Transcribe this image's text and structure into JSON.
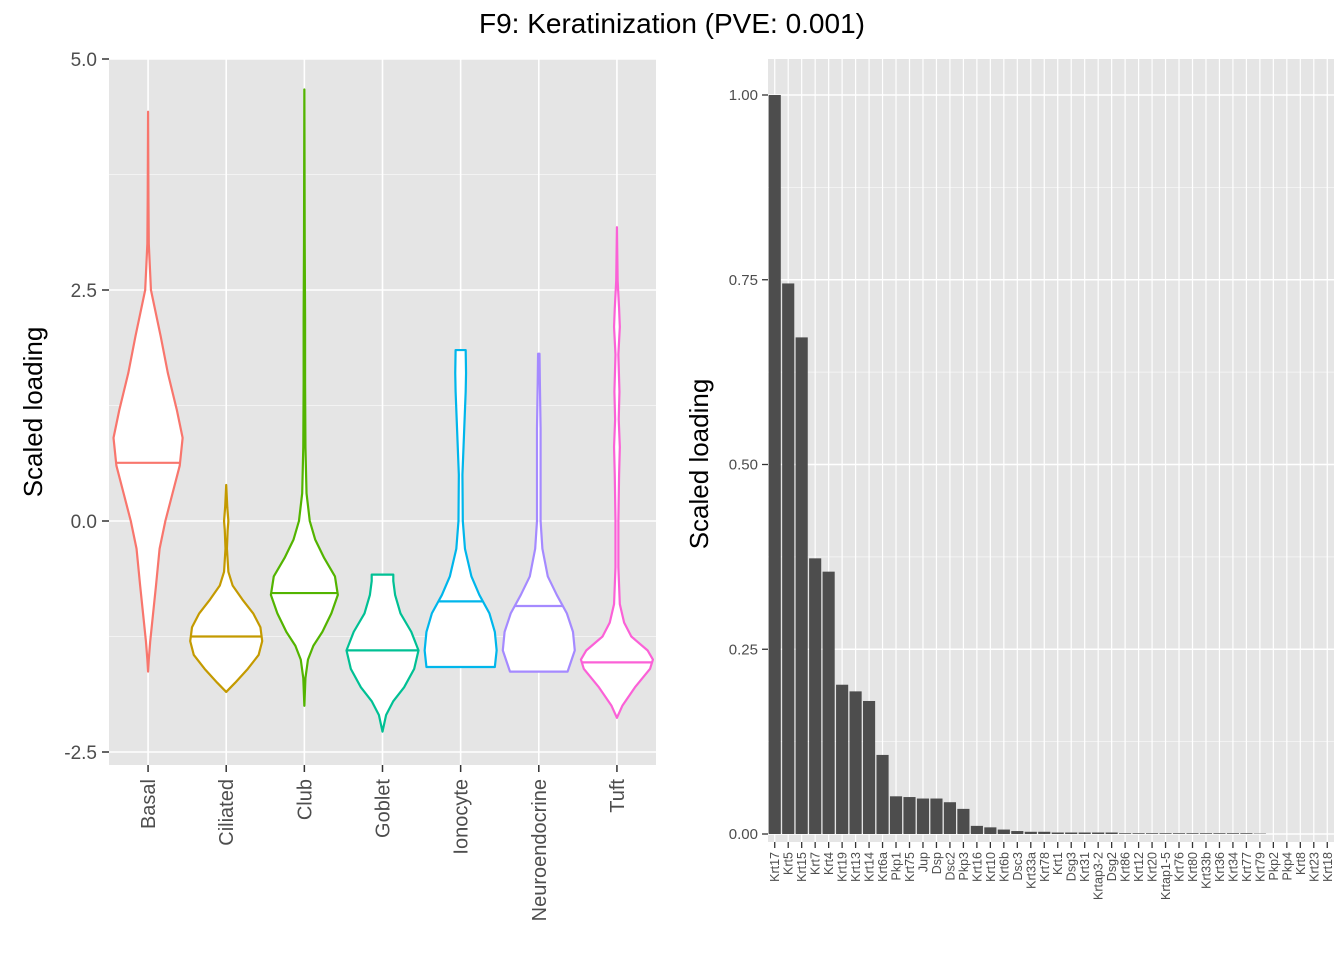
{
  "figure": {
    "title": "F9: Keratinization (PVE: 0.001)",
    "panel_background": "#e5e5e5",
    "grid_color": "#ffffff",
    "tick_text_color": "#4d4d4d"
  },
  "chart_data": [
    {
      "type": "violin",
      "title": "",
      "xlabel": "",
      "ylabel": "Scaled loading",
      "ylim": [
        -2.7,
        5.0
      ],
      "yticks": [
        -2.5,
        0.0,
        2.5,
        5.0
      ],
      "ytick_labels": [
        "-2.5",
        "0.0",
        "2.5",
        "5.0"
      ],
      "grid": true,
      "legend": "none",
      "categories": [
        "Basal",
        "Ciliated",
        "Club",
        "Goblet",
        "Ionocyte",
        "Neuroendocrine",
        "Tuft"
      ],
      "series": [
        {
          "category": "Basal",
          "color": "#F8766D",
          "median": 0.63,
          "min": -1.63,
          "max": 4.43,
          "profile": [
            [
              -1.63,
              0.0
            ],
            [
              -1.5,
              0.02
            ],
            [
              -1.3,
              0.06
            ],
            [
              -1.0,
              0.14
            ],
            [
              -0.7,
              0.22
            ],
            [
              -0.3,
              0.32
            ],
            [
              0.0,
              0.48
            ],
            [
              0.3,
              0.68
            ],
            [
              0.6,
              0.88
            ],
            [
              0.9,
              0.96
            ],
            [
              1.2,
              0.8
            ],
            [
              1.6,
              0.55
            ],
            [
              2.0,
              0.35
            ],
            [
              2.5,
              0.08
            ],
            [
              3.0,
              0.02
            ],
            [
              3.5,
              0.01
            ],
            [
              4.43,
              0.0
            ]
          ]
        },
        {
          "category": "Ciliated",
          "color": "#C49A00",
          "median": -1.25,
          "min": -1.85,
          "max": 0.39,
          "profile": [
            [
              -1.85,
              0.0
            ],
            [
              -1.75,
              0.25
            ],
            [
              -1.6,
              0.6
            ],
            [
              -1.45,
              0.9
            ],
            [
              -1.3,
              1.0
            ],
            [
              -1.15,
              0.95
            ],
            [
              -1.0,
              0.75
            ],
            [
              -0.85,
              0.45
            ],
            [
              -0.7,
              0.18
            ],
            [
              -0.55,
              0.06
            ],
            [
              -0.3,
              0.02
            ],
            [
              -0.1,
              0.04
            ],
            [
              0.0,
              0.06
            ],
            [
              0.15,
              0.03
            ],
            [
              0.39,
              0.0
            ]
          ]
        },
        {
          "category": "Club",
          "color": "#53B400",
          "median": -0.78,
          "min": -2.0,
          "max": 4.67,
          "profile": [
            [
              -2.0,
              0.0
            ],
            [
              -1.7,
              0.03
            ],
            [
              -1.5,
              0.1
            ],
            [
              -1.35,
              0.25
            ],
            [
              -1.2,
              0.5
            ],
            [
              -1.0,
              0.75
            ],
            [
              -0.8,
              0.93
            ],
            [
              -0.6,
              0.85
            ],
            [
              -0.4,
              0.55
            ],
            [
              -0.2,
              0.3
            ],
            [
              0.0,
              0.15
            ],
            [
              0.3,
              0.06
            ],
            [
              0.8,
              0.03
            ],
            [
              1.5,
              0.02
            ],
            [
              2.2,
              0.02
            ],
            [
              3.0,
              0.01
            ],
            [
              4.67,
              0.0
            ]
          ]
        },
        {
          "category": "Goblet",
          "color": "#00C094",
          "median": -1.4,
          "min": -2.28,
          "max": -0.58,
          "profile": [
            [
              -2.28,
              0.0
            ],
            [
              -2.1,
              0.1
            ],
            [
              -1.95,
              0.3
            ],
            [
              -1.8,
              0.6
            ],
            [
              -1.6,
              0.88
            ],
            [
              -1.4,
              1.0
            ],
            [
              -1.2,
              0.8
            ],
            [
              -1.0,
              0.5
            ],
            [
              -0.8,
              0.35
            ],
            [
              -0.65,
              0.3
            ],
            [
              -0.58,
              0.3
            ]
          ]
        },
        {
          "category": "Ionocyte",
          "color": "#00B6EB",
          "median": -0.87,
          "min": -1.58,
          "max": 1.85,
          "profile": [
            [
              -1.58,
              0.95
            ],
            [
              -1.4,
              1.0
            ],
            [
              -1.2,
              0.95
            ],
            [
              -1.0,
              0.8
            ],
            [
              -0.8,
              0.52
            ],
            [
              -0.6,
              0.3
            ],
            [
              -0.3,
              0.12
            ],
            [
              0.0,
              0.06
            ],
            [
              0.5,
              0.05
            ],
            [
              1.0,
              0.1
            ],
            [
              1.4,
              0.14
            ],
            [
              1.6,
              0.15
            ],
            [
              1.85,
              0.14
            ]
          ]
        },
        {
          "category": "Neuroendocrine",
          "color": "#A58AFF",
          "median": -0.92,
          "min": -1.63,
          "max": 1.81,
          "profile": [
            [
              -1.63,
              0.8
            ],
            [
              -1.4,
              1.0
            ],
            [
              -1.2,
              0.95
            ],
            [
              -1.0,
              0.78
            ],
            [
              -0.8,
              0.5
            ],
            [
              -0.6,
              0.25
            ],
            [
              -0.3,
              0.1
            ],
            [
              0.0,
              0.05
            ],
            [
              0.5,
              0.05
            ],
            [
              1.0,
              0.05
            ],
            [
              1.5,
              0.03
            ],
            [
              1.81,
              0.02
            ]
          ]
        },
        {
          "category": "Tuft",
          "color": "#FB61D7",
          "median": -1.53,
          "min": -2.13,
          "max": 3.18,
          "profile": [
            [
              -2.13,
              0.0
            ],
            [
              -2.0,
              0.15
            ],
            [
              -1.8,
              0.5
            ],
            [
              -1.6,
              0.92
            ],
            [
              -1.5,
              1.0
            ],
            [
              -1.4,
              0.85
            ],
            [
              -1.25,
              0.4
            ],
            [
              -1.1,
              0.2
            ],
            [
              -0.9,
              0.08
            ],
            [
              -0.5,
              0.04
            ],
            [
              0.0,
              0.04
            ],
            [
              0.5,
              0.06
            ],
            [
              0.8,
              0.08
            ],
            [
              1.1,
              0.05
            ],
            [
              1.4,
              0.07
            ],
            [
              1.8,
              0.04
            ],
            [
              2.1,
              0.08
            ],
            [
              2.3,
              0.06
            ],
            [
              2.6,
              0.02
            ],
            [
              3.18,
              0.0
            ]
          ]
        }
      ]
    },
    {
      "type": "bar",
      "title": "",
      "xlabel": "",
      "ylabel": "Scaled loading",
      "ylim": [
        0.0,
        1.0
      ],
      "yticks": [
        0.0,
        0.25,
        0.5,
        0.75,
        1.0
      ],
      "ytick_labels": [
        "0.00",
        "0.25",
        "0.50",
        "0.75",
        "1.00"
      ],
      "grid": true,
      "legend": "none",
      "bar_color": "#4d4d4d",
      "categories": [
        "Krt17",
        "Krt5",
        "Krt15",
        "Krt7",
        "Krt4",
        "Krt19",
        "Krt13",
        "Krt14",
        "Krt6a",
        "Pkp1",
        "Krt75",
        "Jup",
        "Dsp",
        "Dsc2",
        "Pkp3",
        "Krt16",
        "Krt10",
        "Krt6b",
        "Dsc3",
        "Krt33a",
        "Krt78",
        "Krt1",
        "Dsg3",
        "Krt31",
        "Krtap3-2",
        "Dsg2",
        "Krt86",
        "Krt12",
        "Krt20",
        "Krtap1-5",
        "Krt76",
        "Krt80",
        "Krt33b",
        "Krt36",
        "Krt34",
        "Krt77",
        "Krt79",
        "Pkp2",
        "Pkp4",
        "Krt8",
        "Krt23",
        "Krt18"
      ],
      "values": [
        1.0,
        0.745,
        0.672,
        0.373,
        0.355,
        0.202,
        0.193,
        0.18,
        0.107,
        0.051,
        0.05,
        0.048,
        0.048,
        0.043,
        0.034,
        0.011,
        0.009,
        0.006,
        0.004,
        0.003,
        0.003,
        0.002,
        0.002,
        0.002,
        0.002,
        0.002,
        0.001,
        0.001,
        0.001,
        0.001,
        0.001,
        0.001,
        0.001,
        0.001,
        0.001,
        0.001,
        0.0005,
        0.0,
        0.0,
        0.0,
        0.0,
        0.0
      ]
    }
  ]
}
